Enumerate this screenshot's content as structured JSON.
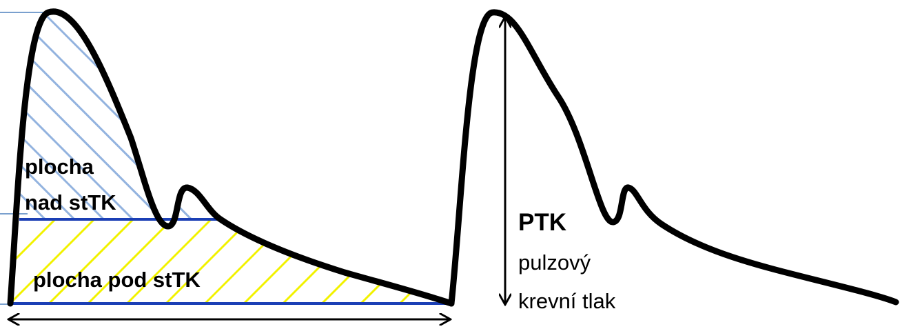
{
  "labels": {
    "area_above": [
      "plocha",
      "nad stTK"
    ],
    "area_below": "plocha pod stTK",
    "ptk": "PTK",
    "ptk_desc": [
      "pulzový",
      "krevní tlak"
    ]
  }
}
